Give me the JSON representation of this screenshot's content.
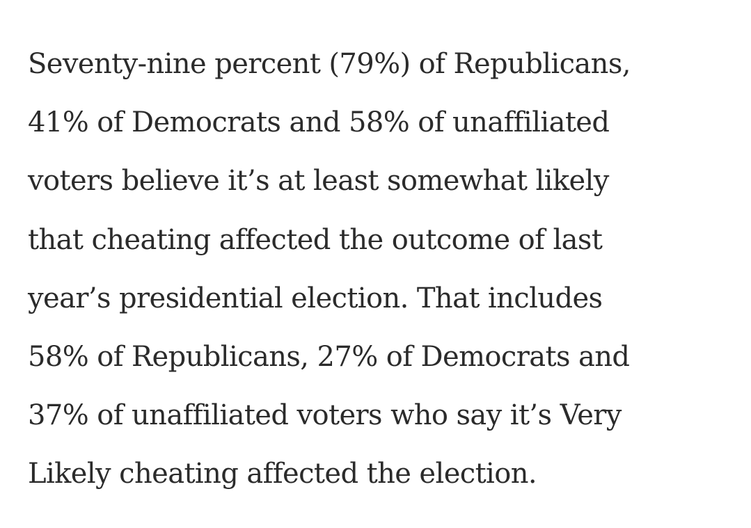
{
  "article": {
    "paragraph_lines": [
      "Seventy-nine percent (79%) of Republicans,",
      "41% of Democrats and 58% of unaffiliated",
      "voters believe it’s at least somewhat likely",
      "that cheating affected the outcome of last",
      "year’s presidential election. That includes",
      "58% of Republicans, 27% of Democrats and",
      "37% of unaffiliated voters who say it’s Very",
      "Likely cheating affected the election."
    ]
  }
}
